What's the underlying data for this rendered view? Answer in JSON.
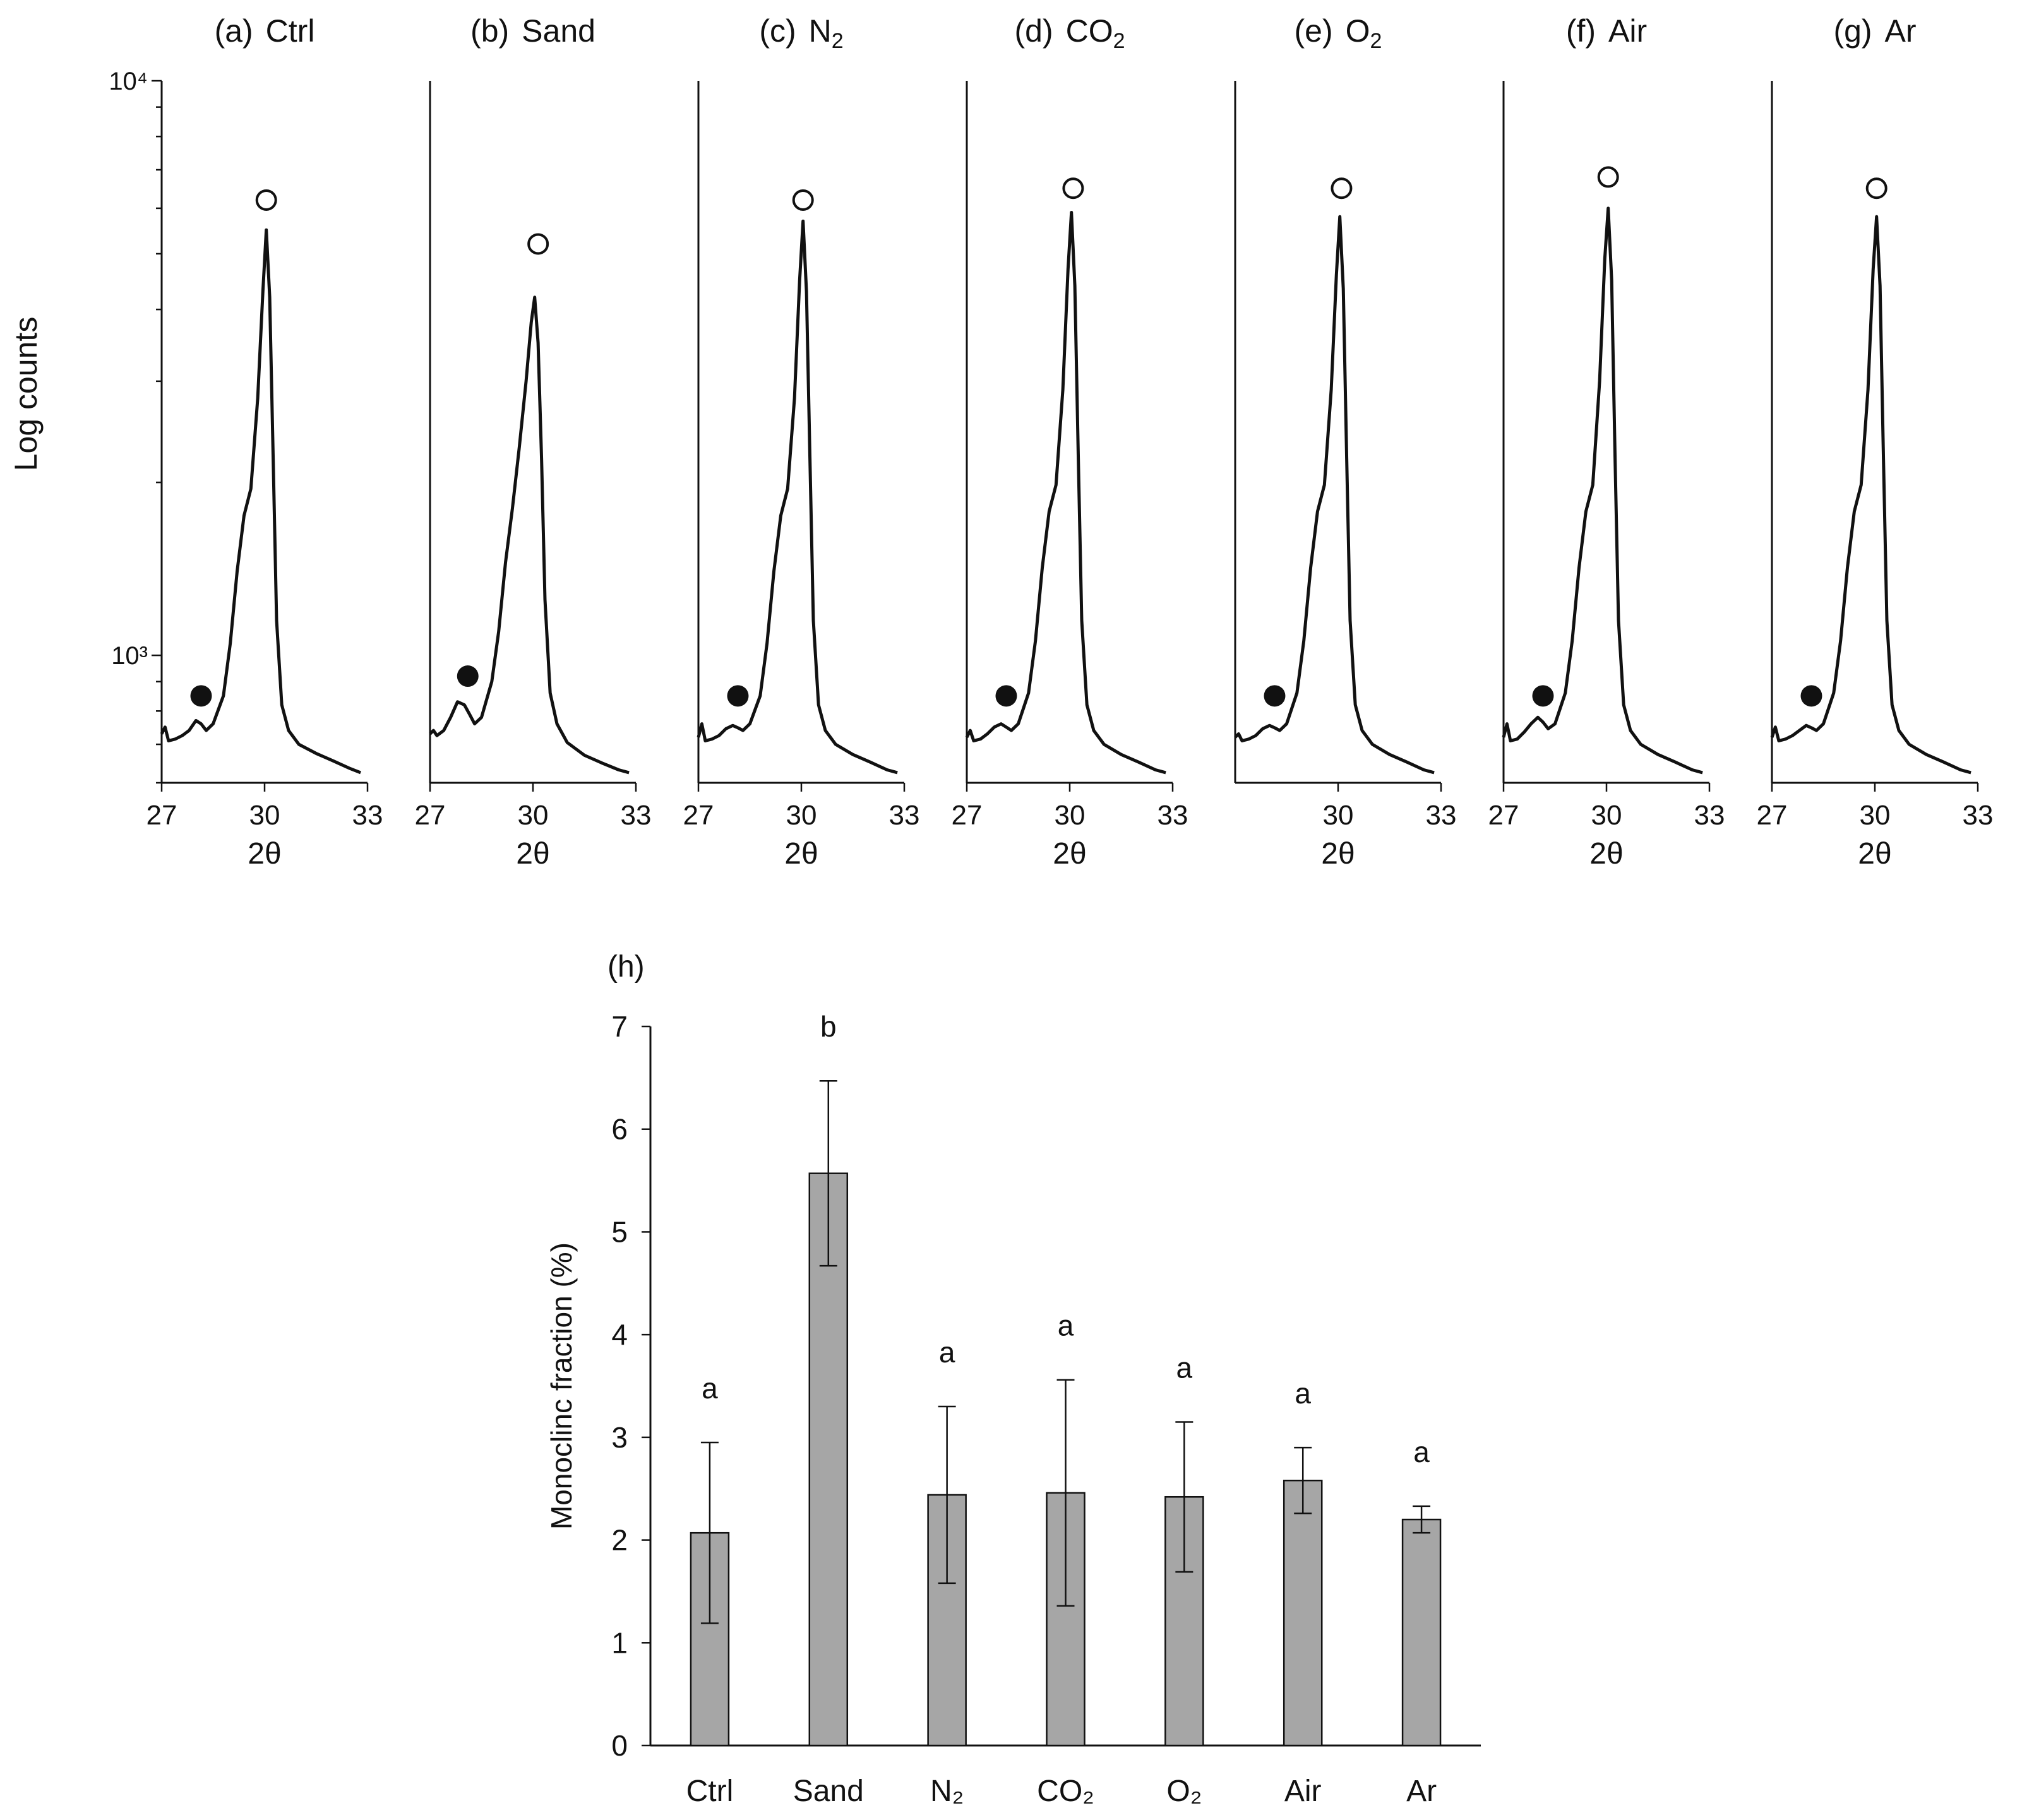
{
  "figure_title": "",
  "chart_data": [
    {
      "type": "line",
      "panel_label": "(a)",
      "name": "Ctrl",
      "name_sub": "",
      "xlabel": "2θ",
      "ylabel": "Log counts",
      "xlim": [
        27,
        33
      ],
      "x_ticks": [
        "27",
        "30",
        "33"
      ],
      "ylim_log": [
        600,
        10000
      ],
      "y_tick_labels": {
        "1000": "10³",
        "10000": "10⁴"
      },
      "x": [
        27,
        27.1,
        27.2,
        27.4,
        27.6,
        27.8,
        28,
        28.15,
        28.3,
        28.5,
        28.8,
        29,
        29.2,
        29.4,
        29.6,
        29.8,
        29.95,
        30.05,
        30.15,
        30.25,
        30.35,
        30.5,
        30.7,
        31,
        31.5,
        32,
        32.5,
        32.8
      ],
      "counts": [
        730,
        750,
        710,
        715,
        725,
        740,
        770,
        760,
        740,
        760,
        850,
        1050,
        1400,
        1750,
        1950,
        2800,
        4300,
        5500,
        4200,
        2200,
        1150,
        820,
        740,
        700,
        675,
        655,
        635,
        625
      ],
      "markers": [
        {
          "type": "filled",
          "label": "●",
          "x": 28.15,
          "counts": 850
        },
        {
          "type": "open",
          "label": "○",
          "x": 30.05,
          "counts": 6200
        }
      ]
    },
    {
      "type": "line",
      "panel_label": "(b)",
      "name": "Sand",
      "name_sub": "",
      "xlabel": "2θ",
      "xlim": [
        27,
        33
      ],
      "x_ticks": [
        "27",
        "30",
        "33"
      ],
      "ylim_log": [
        600,
        10000
      ],
      "x": [
        27,
        27.1,
        27.2,
        27.4,
        27.6,
        27.8,
        28,
        28.15,
        28.3,
        28.5,
        28.8,
        29,
        29.2,
        29.4,
        29.6,
        29.8,
        29.95,
        30.05,
        30.15,
        30.25,
        30.35,
        30.5,
        30.7,
        31,
        31.5,
        32,
        32.5,
        32.8
      ],
      "counts": [
        730,
        740,
        725,
        740,
        780,
        830,
        820,
        790,
        760,
        780,
        900,
        1100,
        1450,
        1800,
        2300,
        3000,
        3800,
        4200,
        3500,
        2200,
        1250,
        860,
        760,
        705,
        670,
        650,
        632,
        625
      ],
      "markers": [
        {
          "type": "filled",
          "label": "●",
          "x": 28.1,
          "counts": 920
        },
        {
          "type": "open",
          "label": "○",
          "x": 30.15,
          "counts": 5200
        }
      ]
    },
    {
      "type": "line",
      "panel_label": "(c)",
      "name": "N",
      "name_sub": "2",
      "xlabel": "2θ",
      "xlim": [
        27,
        33
      ],
      "x_ticks": [
        "27",
        "30",
        "33"
      ],
      "ylim_log": [
        600,
        10000
      ],
      "x": [
        27,
        27.1,
        27.2,
        27.4,
        27.6,
        27.8,
        28,
        28.15,
        28.3,
        28.5,
        28.8,
        29,
        29.2,
        29.4,
        29.6,
        29.8,
        29.95,
        30.05,
        30.15,
        30.25,
        30.35,
        30.5,
        30.7,
        31,
        31.5,
        32,
        32.5,
        32.8
      ],
      "counts": [
        720,
        760,
        710,
        715,
        725,
        745,
        755,
        748,
        740,
        760,
        850,
        1050,
        1400,
        1750,
        1950,
        2800,
        4500,
        5700,
        4300,
        2200,
        1150,
        820,
        740,
        700,
        672,
        652,
        632,
        625
      ],
      "markers": [
        {
          "type": "filled",
          "label": "●",
          "x": 28.15,
          "counts": 850
        },
        {
          "type": "open",
          "label": "○",
          "x": 30.05,
          "counts": 6200
        }
      ]
    },
    {
      "type": "line",
      "panel_label": "(d)",
      "name": "CO",
      "name_sub": "2",
      "xlabel": "2θ",
      "xlim": [
        27,
        33
      ],
      "x_ticks": [
        "27",
        "30",
        "33"
      ],
      "ylim_log": [
        600,
        10000
      ],
      "x": [
        27,
        27.1,
        27.2,
        27.4,
        27.6,
        27.8,
        28,
        28.15,
        28.3,
        28.5,
        28.8,
        29,
        29.2,
        29.4,
        29.6,
        29.8,
        29.95,
        30.05,
        30.15,
        30.25,
        30.35,
        30.5,
        30.7,
        31,
        31.5,
        32,
        32.5,
        32.8
      ],
      "counts": [
        720,
        740,
        710,
        715,
        730,
        750,
        760,
        750,
        740,
        760,
        860,
        1060,
        1420,
        1780,
        1980,
        2900,
        4700,
        5900,
        4400,
        2200,
        1150,
        820,
        740,
        700,
        672,
        652,
        632,
        625
      ],
      "markers": [
        {
          "type": "filled",
          "label": "●",
          "x": 28.15,
          "counts": 850
        },
        {
          "type": "open",
          "label": "○",
          "x": 30.1,
          "counts": 6500
        }
      ]
    },
    {
      "type": "line",
      "panel_label": "(e)",
      "name": "O",
      "name_sub": "2",
      "xlabel": "2θ",
      "xlim": [
        27,
        33
      ],
      "x_ticks": [
        "30",
        "33"
      ],
      "ylim_log": [
        600,
        10000
      ],
      "x": [
        27,
        27.1,
        27.2,
        27.4,
        27.6,
        27.8,
        28,
        28.15,
        28.3,
        28.5,
        28.8,
        29,
        29.2,
        29.4,
        29.6,
        29.8,
        29.95,
        30.05,
        30.15,
        30.25,
        30.35,
        30.5,
        30.7,
        31,
        31.5,
        32,
        32.5,
        32.8
      ],
      "counts": [
        720,
        730,
        710,
        715,
        725,
        745,
        755,
        748,
        740,
        760,
        860,
        1060,
        1420,
        1780,
        1980,
        2900,
        4600,
        5800,
        4350,
        2200,
        1150,
        820,
        740,
        700,
        672,
        652,
        632,
        625
      ],
      "markers": [
        {
          "type": "filled",
          "label": "●",
          "x": 28.15,
          "counts": 850
        },
        {
          "type": "open",
          "label": "○",
          "x": 30.1,
          "counts": 6500
        }
      ]
    },
    {
      "type": "line",
      "panel_label": "(f)",
      "name": "Air",
      "name_sub": "",
      "xlabel": "2θ",
      "xlim": [
        27,
        33
      ],
      "x_ticks": [
        "27",
        "30",
        "33"
      ],
      "ylim_log": [
        600,
        10000
      ],
      "x": [
        27,
        27.1,
        27.2,
        27.4,
        27.6,
        27.8,
        28,
        28.15,
        28.3,
        28.5,
        28.8,
        29,
        29.2,
        29.4,
        29.6,
        29.8,
        29.95,
        30.05,
        30.15,
        30.25,
        30.35,
        30.5,
        30.7,
        31,
        31.5,
        32,
        32.5,
        32.8
      ],
      "counts": [
        720,
        760,
        710,
        715,
        735,
        760,
        780,
        765,
        745,
        760,
        860,
        1060,
        1420,
        1780,
        1980,
        3000,
        4900,
        6000,
        4500,
        2200,
        1150,
        820,
        740,
        700,
        672,
        652,
        632,
        625
      ],
      "markers": [
        {
          "type": "filled",
          "label": "●",
          "x": 28.15,
          "counts": 850
        },
        {
          "type": "open",
          "label": "○",
          "x": 30.05,
          "counts": 6800
        }
      ]
    },
    {
      "type": "line",
      "panel_label": "(g)",
      "name": "Ar",
      "name_sub": "",
      "xlabel": "2θ",
      "xlim": [
        27,
        33
      ],
      "x_ticks": [
        "27",
        "30",
        "33"
      ],
      "ylim_log": [
        600,
        10000
      ],
      "x": [
        27,
        27.1,
        27.2,
        27.4,
        27.6,
        27.8,
        28,
        28.15,
        28.3,
        28.5,
        28.8,
        29,
        29.2,
        29.4,
        29.6,
        29.8,
        29.95,
        30.05,
        30.15,
        30.25,
        30.35,
        30.5,
        30.7,
        31,
        31.5,
        32,
        32.5,
        32.8
      ],
      "counts": [
        720,
        750,
        710,
        715,
        725,
        740,
        755,
        748,
        740,
        760,
        860,
        1060,
        1420,
        1780,
        1980,
        2900,
        4700,
        5800,
        4400,
        2200,
        1150,
        820,
        740,
        700,
        672,
        652,
        632,
        625
      ],
      "markers": [
        {
          "type": "filled",
          "label": "●",
          "x": 28.15,
          "counts": 850
        },
        {
          "type": "open",
          "label": "○",
          "x": 30.05,
          "counts": 6500
        }
      ]
    },
    {
      "type": "bar",
      "panel_label": "(h)",
      "categories": [
        "Ctrl",
        "Sand",
        "N₂",
        "CO₂",
        "O₂",
        "Air",
        "Ar"
      ],
      "values": [
        2.07,
        5.57,
        2.44,
        2.46,
        2.42,
        2.58,
        2.2
      ],
      "errors": [
        0.88,
        0.9,
        0.86,
        1.1,
        0.73,
        0.32,
        0.13
      ],
      "significance": [
        "a",
        "b",
        "a",
        "a",
        "a",
        "a",
        "a"
      ],
      "ylabel": "Monoclinc fraction (%)",
      "xlabel": "",
      "ylim": [
        0,
        7
      ],
      "y_ticks": [
        "0",
        "1",
        "2",
        "3",
        "4",
        "5",
        "6",
        "7"
      ],
      "bar_color": "#a6a6a6"
    }
  ]
}
